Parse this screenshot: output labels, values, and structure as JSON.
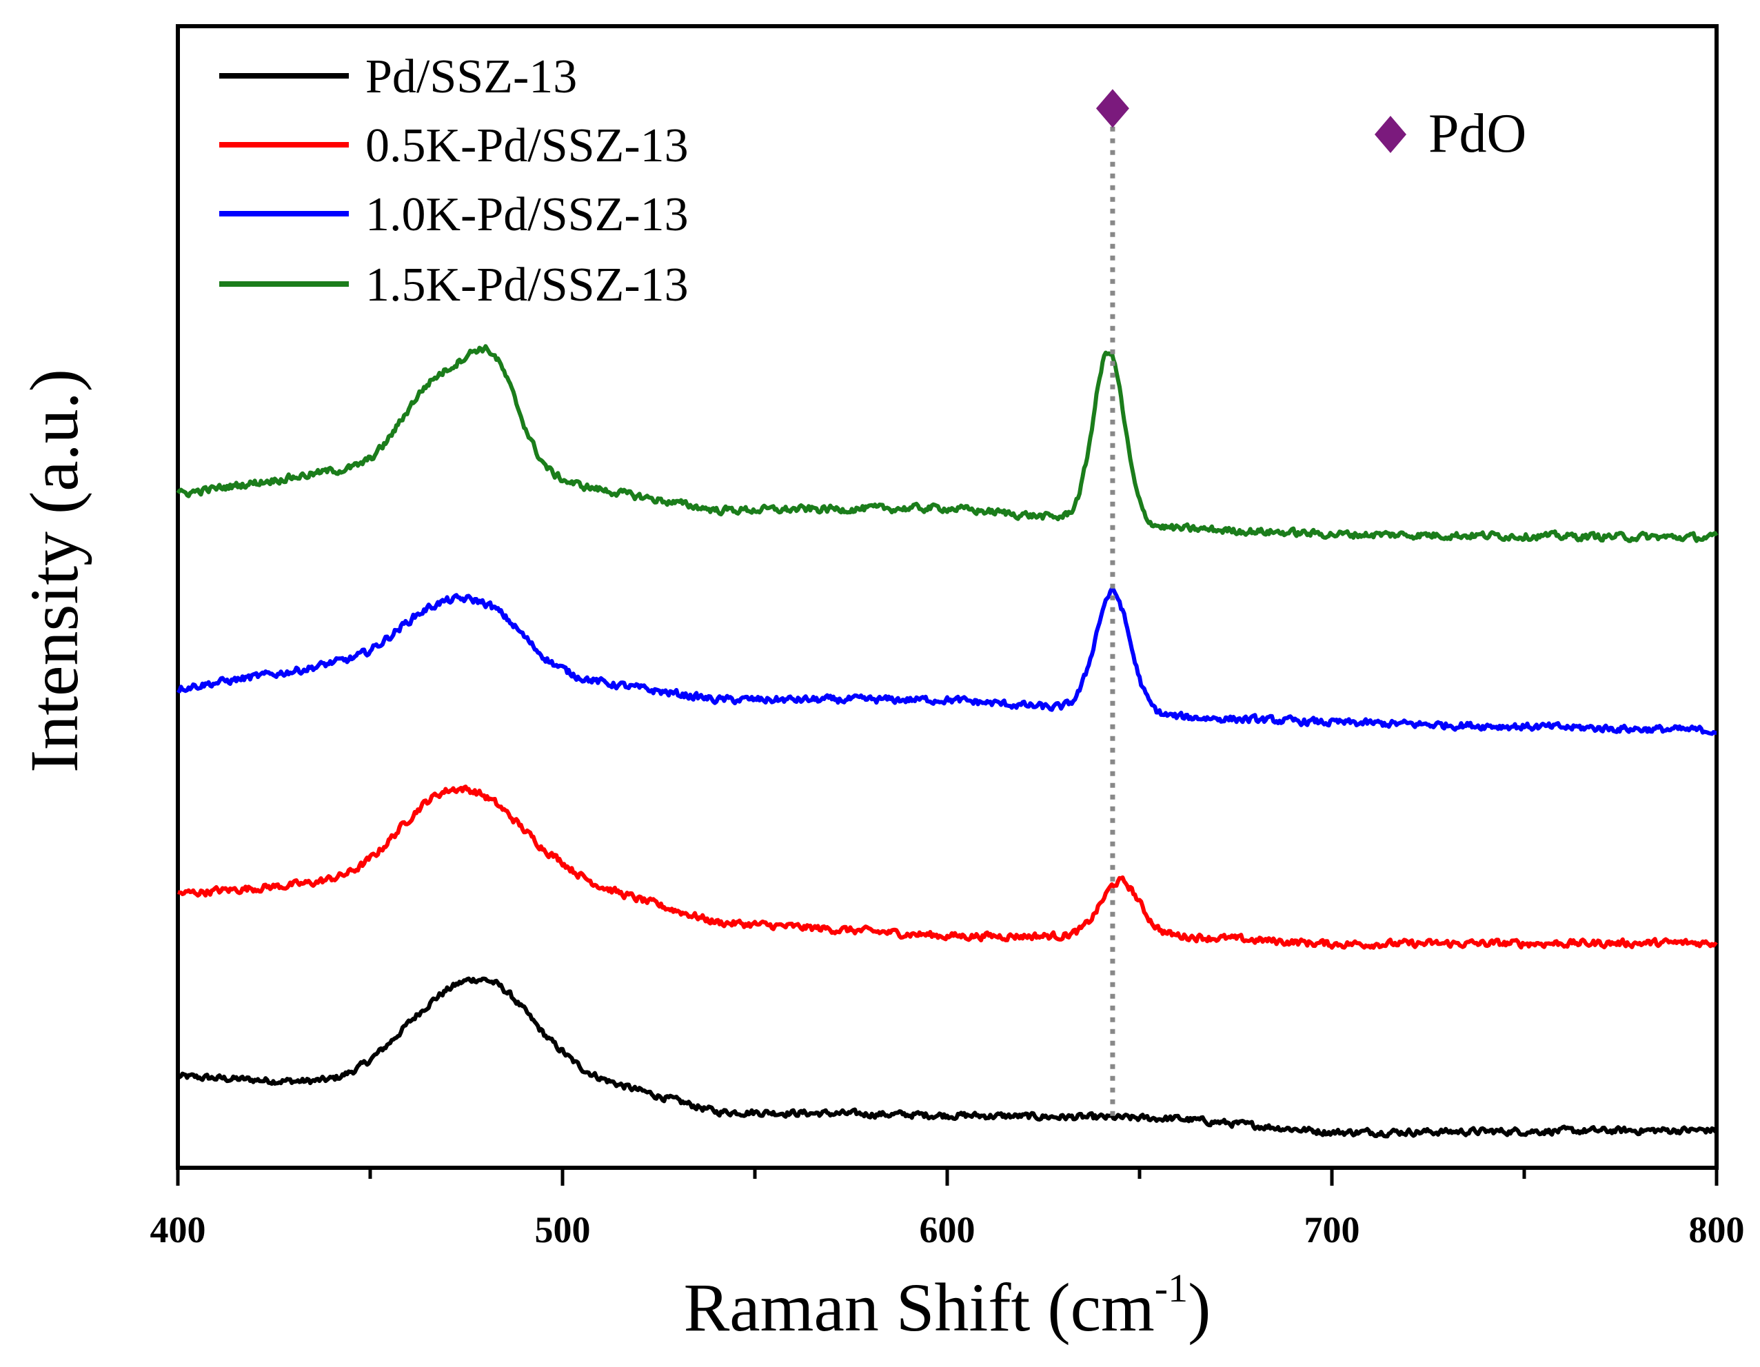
{
  "chart_data": {
    "type": "line",
    "title": "",
    "xlabel": "Raman Shift (cm",
    "xlabel_sup": "-1",
    "xlabel_close": ")",
    "ylabel": "Intensity (a.u.)",
    "xlim": [
      400,
      800
    ],
    "ylim": [
      0,
      100
    ],
    "x_ticks": [
      "400",
      "500",
      "600",
      "700",
      "800"
    ],
    "y_tick_labels": "none",
    "legend_position": "top-left",
    "annotation": {
      "marker": "purple-diamond",
      "label": "PdO",
      "peak_x": 643,
      "color": "#7b1a7d"
    },
    "reference_line": {
      "x": 643,
      "style": "dotted",
      "color": "#888888"
    },
    "series": [
      {
        "name": "Pd/SSZ-13",
        "color": "#000000",
        "baseline": [
          [
            400,
            8.0
          ],
          [
            440,
            7.4
          ],
          [
            500,
            8.6
          ],
          [
            540,
            4.9
          ],
          [
            600,
            4.6
          ],
          [
            660,
            4.3
          ],
          [
            700,
            3.1
          ],
          [
            800,
            3.3
          ]
        ],
        "peaks": [
          [
            468,
            5.7,
            12
          ],
          [
            484,
            5.2,
            10
          ]
        ],
        "noise": 0.45
      },
      {
        "name": "0.5K-Pd/SSZ-13",
        "color": "#ff0000",
        "baseline": [
          [
            400,
            24.0
          ],
          [
            440,
            25.0
          ],
          [
            500,
            25.5
          ],
          [
            540,
            21.5
          ],
          [
            600,
            20.3
          ],
          [
            660,
            20.3
          ],
          [
            700,
            19.6
          ],
          [
            800,
            19.7
          ]
        ],
        "peaks": [
          [
            466,
            5.5,
            11
          ],
          [
            482,
            4.8,
            11
          ],
          [
            645,
            4.8,
            5
          ]
        ],
        "noise": 0.5
      },
      {
        "name": "1.0K-Pd/SSZ-13",
        "color": "#0000ff",
        "baseline": [
          [
            400,
            42.0
          ],
          [
            440,
            44.0
          ],
          [
            500,
            43.0
          ],
          [
            540,
            41.0
          ],
          [
            600,
            41.0
          ],
          [
            660,
            39.5
          ],
          [
            700,
            39.0
          ],
          [
            800,
            38.3
          ]
        ],
        "peaks": [
          [
            467,
            5.0,
            11
          ],
          [
            483,
            3.8,
            9
          ],
          [
            643,
            10.5,
            4.5
          ]
        ],
        "noise": 0.5
      },
      {
        "name": "1.5K-Pd/SSZ-13",
        "color": "#1b7d1b",
        "baseline": [
          [
            400,
            59.0
          ],
          [
            440,
            61.0
          ],
          [
            500,
            60.0
          ],
          [
            540,
            57.6
          ],
          [
            600,
            57.8
          ],
          [
            660,
            56.0
          ],
          [
            700,
            55.5
          ],
          [
            800,
            55.2
          ]
        ],
        "peaks": [
          [
            467,
            7.8,
            9
          ],
          [
            482,
            9.0,
            7
          ],
          [
            642,
            15.0,
            4
          ]
        ],
        "noise": 0.5
      }
    ]
  }
}
